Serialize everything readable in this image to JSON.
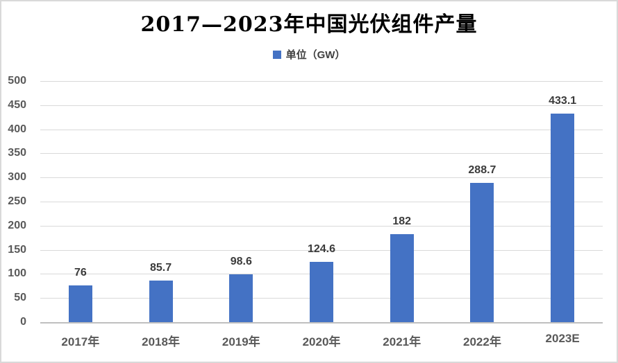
{
  "chart_data": {
    "type": "bar",
    "title": "2017—2023年中国光伏组件产量",
    "legend": "单位（GW）",
    "legend_position": "top",
    "categories": [
      "2017年",
      "2018年",
      "2019年",
      "2020年",
      "2021年",
      "2022年",
      "2023E"
    ],
    "values": [
      76,
      85.7,
      98.6,
      124.6,
      182,
      288.7,
      433.1
    ],
    "data_labels": [
      "76",
      "85.7",
      "98.6",
      "124.6",
      "182",
      "288.7",
      "433.1"
    ],
    "xlabel": "",
    "ylabel": "",
    "ylim": [
      0,
      500
    ],
    "ytick_step": 50,
    "yticks": [
      0,
      50,
      100,
      150,
      200,
      250,
      300,
      350,
      400,
      450,
      500
    ],
    "grid": true,
    "colors": {
      "bar": "#4472C4",
      "gridline": "#d9d9d9",
      "axis_line": "#bfbfbf",
      "tick_text": "#595959",
      "data_label_text": "#3b3b3b",
      "title_text": "#000000",
      "frame_border": "#d9d9d9",
      "background": "#ffffff"
    }
  }
}
